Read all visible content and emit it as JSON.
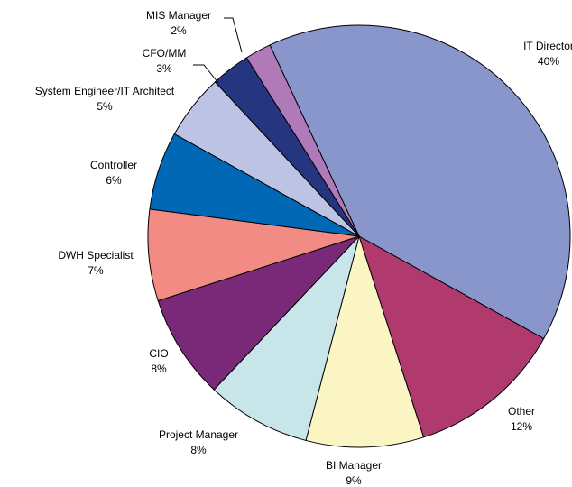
{
  "chart_data": {
    "type": "pie",
    "categories": [
      "IT Director",
      "Other",
      "BI Manager",
      "Project Manager",
      "CIO",
      "DWH Specialist",
      "Controller",
      "System Engineer/IT Architect",
      "CFO/MM",
      "MIS Manager"
    ],
    "values": [
      40,
      12,
      9,
      8,
      8,
      7,
      6,
      5,
      3,
      2
    ],
    "value_labels": [
      "40%",
      "12%",
      "9%",
      "8%",
      "8%",
      "7%",
      "6%",
      "5%",
      "3%",
      "2%"
    ],
    "colors": [
      "#8896cc",
      "#b03a6e",
      "#fbf5c4",
      "#c8e6ea",
      "#7a2878",
      "#f28b84",
      "#0068b4",
      "#bcc3e4",
      "#253580",
      "#b07ab8"
    ]
  }
}
